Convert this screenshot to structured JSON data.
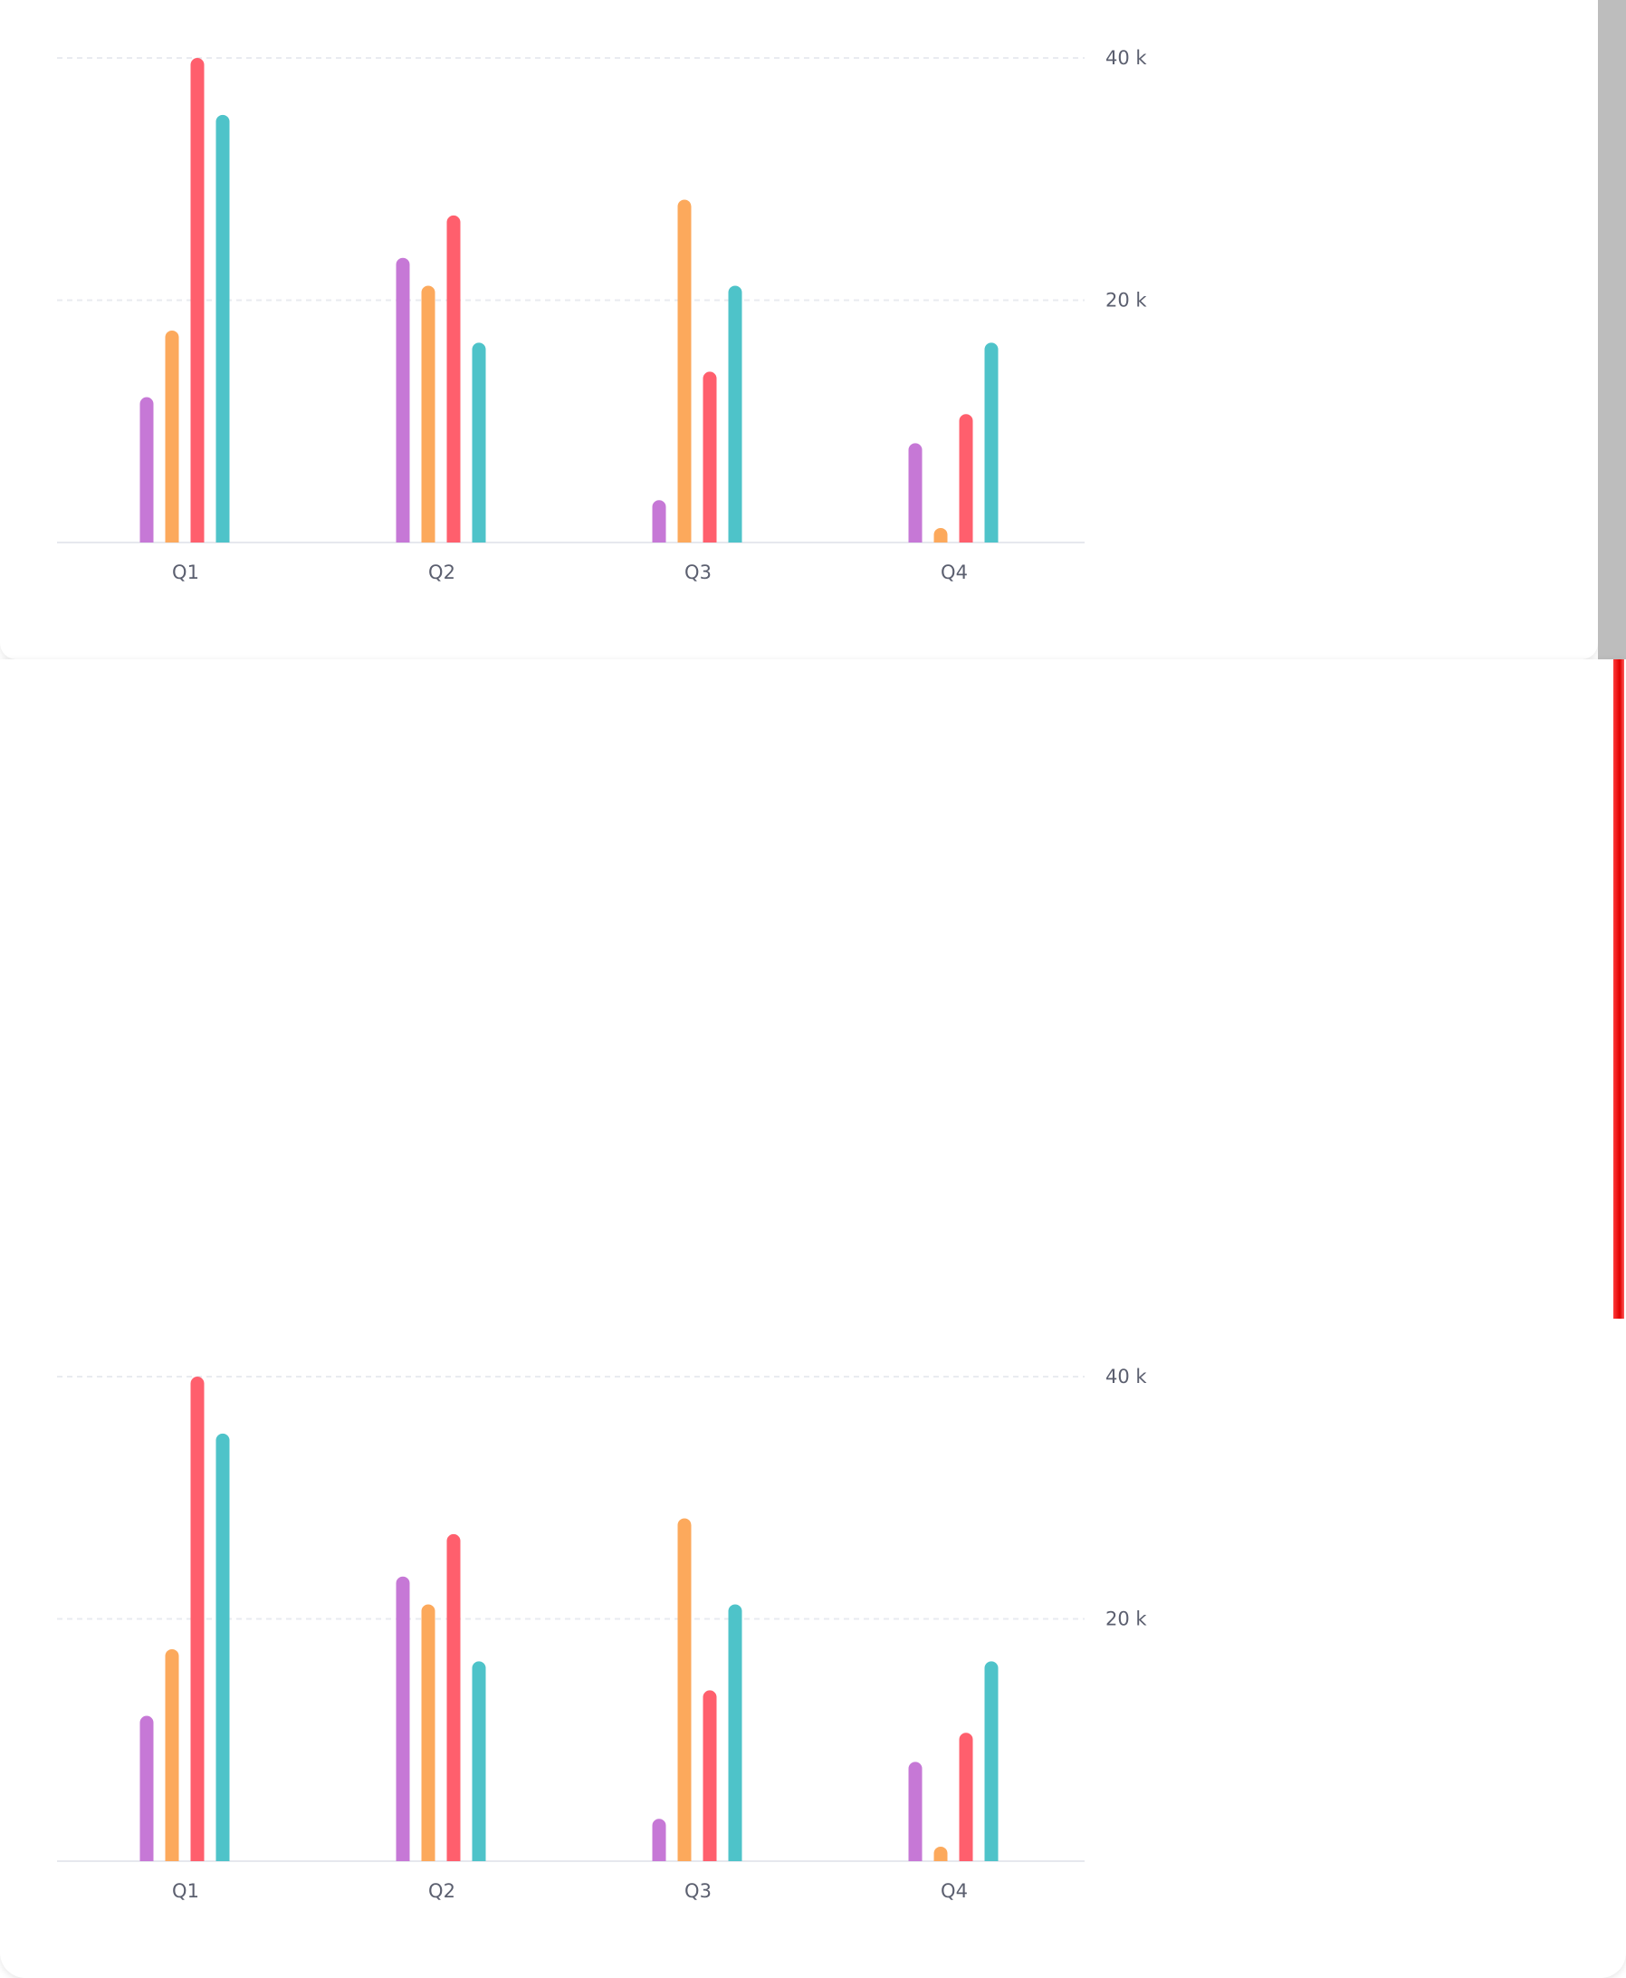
{
  "chart_data": [
    {
      "type": "bar",
      "categories": [
        "Q1",
        "Q2",
        "Q3",
        "Q4"
      ],
      "series": [
        {
          "values": [
            12000,
            23500,
            3500,
            8200
          ],
          "color": "#c678d6"
        },
        {
          "values": [
            17500,
            21200,
            28300,
            1200
          ],
          "color": "#fca95c"
        },
        {
          "values": [
            40000,
            27000,
            14100,
            10600
          ],
          "color": "#ff5f6d"
        },
        {
          "values": [
            35300,
            16500,
            21200,
            16500
          ],
          "color": "#4ec3c9"
        }
      ],
      "yticks": [
        {
          "value": 20000,
          "label": "20 k"
        },
        {
          "value": 40000,
          "label": "40 k"
        }
      ],
      "ylim": [
        0,
        40000
      ],
      "grid": true,
      "y_axis_side": "right"
    },
    {
      "type": "bar",
      "categories": [
        "Q1",
        "Q2",
        "Q3",
        "Q4"
      ],
      "series": [
        {
          "values": [
            12000,
            23500,
            3500,
            8200
          ],
          "color": "#c678d6"
        },
        {
          "values": [
            17500,
            21200,
            28300,
            1200
          ],
          "color": "#fca95c"
        },
        {
          "values": [
            40000,
            27000,
            14100,
            10600
          ],
          "color": "#ff5f6d"
        },
        {
          "values": [
            35300,
            16500,
            21200,
            16500
          ],
          "color": "#4ec3c9"
        }
      ],
      "yticks": [
        {
          "value": 20000,
          "label": "20 k"
        },
        {
          "value": 40000,
          "label": "40 k"
        }
      ],
      "ylim": [
        0,
        40000
      ],
      "grid": true,
      "y_axis_side": "right"
    }
  ],
  "colors": {
    "grid": "#e9ebf0",
    "axis": "#e6e8ee",
    "scrollbar": "#bdbdbd",
    "marker": "#e00000"
  }
}
